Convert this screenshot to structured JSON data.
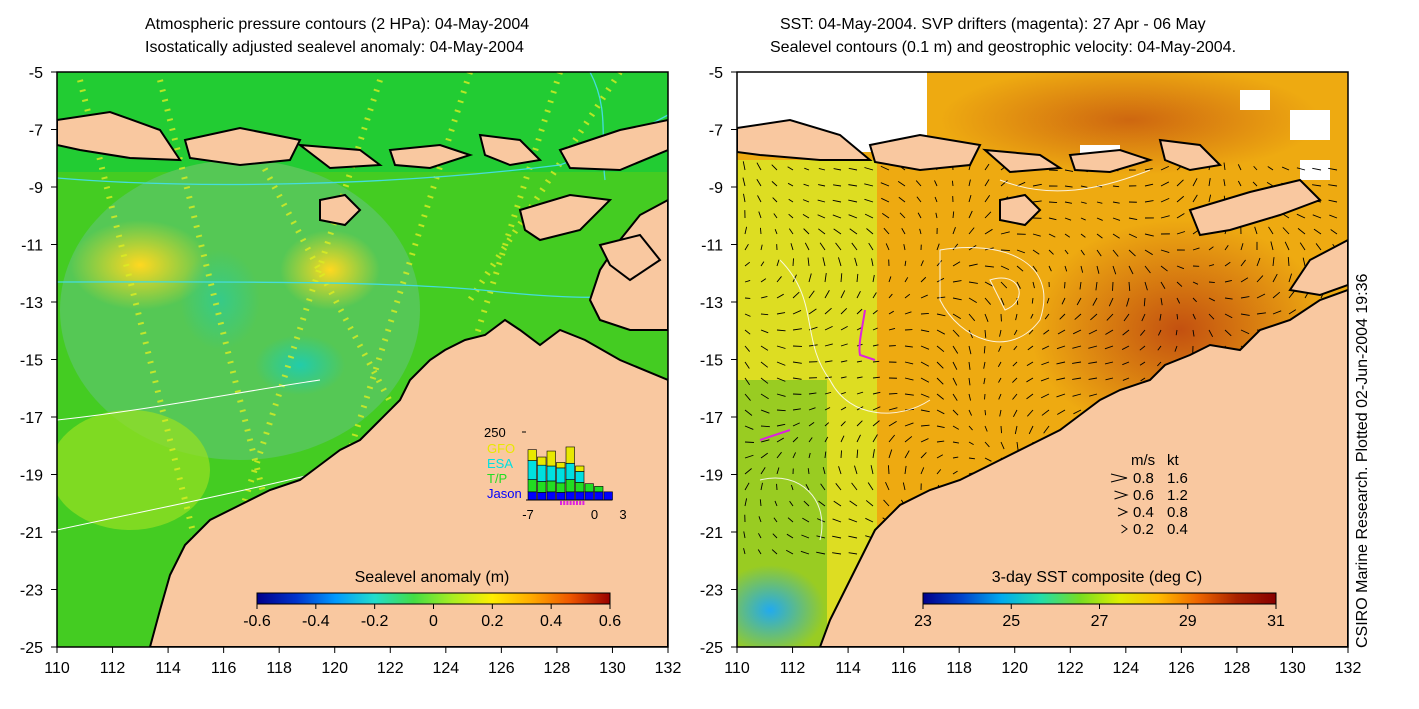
{
  "left_panel": {
    "title_line1": "Atmospheric pressure contours (2 HPa): 04-May-2004",
    "title_line2": "Isostatically adjusted sealevel anomaly: 04-May-2004",
    "colorbar": {
      "label": "Sealevel anomaly (m)",
      "ticks": [
        "-0.6",
        "-0.4",
        "-0.2",
        "0",
        "0.2",
        "0.4",
        "0.6"
      ],
      "colors": [
        "#00008b",
        "#0033cc",
        "#0099ff",
        "#22ddcc",
        "#44dd44",
        "#aaee22",
        "#ffee00",
        "#ffaa00",
        "#ee5500",
        "#990000"
      ]
    },
    "inset": {
      "ymax_label": "250",
      "legend": [
        "GFO",
        "ESA",
        "T/P",
        "Jason"
      ],
      "legend_colors": [
        "#e8e800",
        "#00e0e0",
        "#22dd22",
        "#0000ff"
      ],
      "x_ticks": [
        "-7",
        "0",
        "3"
      ],
      "bars": [
        {
          "day": -7,
          "gfo": 40,
          "esa": 70,
          "tp": 45,
          "jason": 30
        },
        {
          "day": -6,
          "gfo": 30,
          "esa": 60,
          "tp": 40,
          "jason": 28
        },
        {
          "day": -5,
          "gfo": 55,
          "esa": 55,
          "tp": 40,
          "jason": 30
        },
        {
          "day": -4,
          "gfo": 20,
          "esa": 55,
          "tp": 35,
          "jason": 28
        },
        {
          "day": -3,
          "gfo": 60,
          "esa": 60,
          "tp": 45,
          "jason": 30
        },
        {
          "day": -2,
          "gfo": 20,
          "esa": 40,
          "tp": 35,
          "jason": 30
        },
        {
          "day": -1,
          "gfo": 0,
          "esa": 0,
          "tp": 30,
          "jason": 30
        },
        {
          "day": 0,
          "gfo": 0,
          "esa": 0,
          "tp": 20,
          "jason": 30
        },
        {
          "day": 1,
          "gfo": 0,
          "esa": 0,
          "tp": 0,
          "jason": 30
        }
      ]
    }
  },
  "right_panel": {
    "title_line1": "SST: 04-May-2004. SVP drifters (magenta): 27 Apr - 06 May",
    "title_line2": "Sealevel contours (0.1 m) and geostrophic velocity: 04-May-2004.",
    "colorbar": {
      "label": "3-day SST composite (deg C)",
      "ticks": [
        "23",
        "25",
        "27",
        "29",
        "31"
      ],
      "colors": [
        "#00008b",
        "#0044cc",
        "#00aaee",
        "#22ddaa",
        "#77dd22",
        "#ddee00",
        "#ffbb00",
        "#ee6600",
        "#aa2200",
        "#880000"
      ]
    },
    "velocity_key": {
      "header_ms": "m/s",
      "header_kt": "kt",
      "rows": [
        {
          "ms": "0.8",
          "kt": "1.6"
        },
        {
          "ms": "0.6",
          "kt": "1.2"
        },
        {
          "ms": "0.4",
          "kt": "0.8"
        },
        {
          "ms": "0.2",
          "kt": "0.4"
        }
      ]
    }
  },
  "axes": {
    "lat_ticks": [
      "-5",
      "-7",
      "-9",
      "-11",
      "-13",
      "-15",
      "-17",
      "-19",
      "-21",
      "-23",
      "-25"
    ],
    "lon_ticks": [
      "110",
      "112",
      "114",
      "116",
      "118",
      "120",
      "122",
      "124",
      "126",
      "128",
      "130",
      "132"
    ]
  },
  "side_note": "CSIRO Marine Research. Plotted 02-Jun-2004 19:36",
  "colors": {
    "land": "#f9c8a0",
    "coast": "#000000",
    "sla_background": "#55dd22",
    "sst_background": "#ee9922",
    "contour": "#ffffff",
    "pressure_contour": "#44dddd",
    "drifter": "#dd22dd",
    "track_dots": "#ddee22"
  }
}
